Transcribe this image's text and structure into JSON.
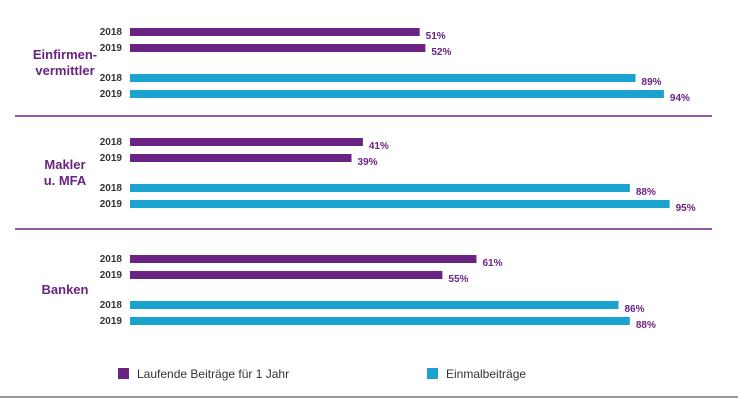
{
  "colors": {
    "laufend": "#6a2383",
    "einmal": "#1aa3cf",
    "divider": "#6a2383",
    "group_label": "#6a2383",
    "value_label": "#6a2383"
  },
  "chart_data": {
    "type": "bar",
    "orientation": "horizontal",
    "xlim": [
      0,
      100
    ],
    "unit": "%",
    "groups": [
      {
        "label_lines": [
          "Einfirmen-",
          "vermittler"
        ],
        "series": [
          {
            "series_key": "laufend",
            "years": [
              "2018",
              "2019"
            ],
            "values": [
              51,
              52
            ]
          },
          {
            "series_key": "einmal",
            "years": [
              "2018",
              "2019"
            ],
            "values": [
              89,
              94
            ]
          }
        ]
      },
      {
        "label_lines": [
          "Makler",
          "u. MFA"
        ],
        "series": [
          {
            "series_key": "laufend",
            "years": [
              "2018",
              "2019"
            ],
            "values": [
              41,
              39
            ]
          },
          {
            "series_key": "einmal",
            "years": [
              "2018",
              "2019"
            ],
            "values": [
              88,
              95
            ]
          }
        ]
      },
      {
        "label_lines": [
          "Banken"
        ],
        "series": [
          {
            "series_key": "laufend",
            "years": [
              "2018",
              "2019"
            ],
            "values": [
              61,
              55
            ]
          },
          {
            "series_key": "einmal",
            "years": [
              "2018",
              "2019"
            ],
            "values": [
              86,
              88
            ]
          }
        ]
      }
    ],
    "legend": [
      {
        "key": "laufend",
        "label": "Laufende Beiträge für 1 Jahr"
      },
      {
        "key": "einmal",
        "label": "Einmalbeiträge"
      }
    ],
    "legend_position": "bottom",
    "grid": false
  }
}
